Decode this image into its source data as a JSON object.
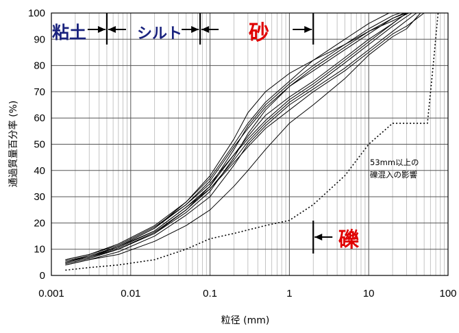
{
  "chart_data": {
    "type": "line",
    "xlabel": "粒径 (mm)",
    "ylabel": "通過質量百分率 (%)",
    "x_scale": "log",
    "xlim": [
      0.001,
      100
    ],
    "ylim": [
      0,
      100
    ],
    "x_ticks": [
      0.001,
      0.01,
      0.1,
      1,
      10,
      100
    ],
    "x_tick_labels": [
      "0.001",
      "0.01",
      "0.1",
      "1",
      "10",
      "100"
    ],
    "y_ticks": [
      0,
      10,
      20,
      30,
      40,
      50,
      60,
      70,
      80,
      90,
      100
    ],
    "grid": true,
    "zones": {
      "clay": {
        "label": "粘土",
        "color": "#1a237e",
        "boundary_max": 0.005
      },
      "silt": {
        "label": "シルト",
        "color": "#1a237e",
        "boundary_min": 0.005,
        "boundary_max": 0.075
      },
      "sand": {
        "label": "砂",
        "color": "#e00000",
        "boundary_min": 0.075,
        "boundary_max": 2
      },
      "gravel": {
        "label": "礫",
        "color": "#e00000",
        "boundary_min": 2
      }
    },
    "annotation": {
      "line1": "53mm以上の",
      "line2": "礫混入の影響"
    },
    "series": [
      {
        "style": "solid",
        "points": [
          [
            0.0015,
            5.5
          ],
          [
            0.003,
            7.5
          ],
          [
            0.007,
            11
          ],
          [
            0.02,
            18
          ],
          [
            0.05,
            27
          ],
          [
            0.1,
            36
          ],
          [
            0.2,
            49
          ],
          [
            0.3,
            56
          ],
          [
            0.5,
            64
          ],
          [
            1,
            72
          ],
          [
            2,
            79
          ],
          [
            5,
            87
          ],
          [
            10,
            93
          ],
          [
            20,
            98
          ],
          [
            30,
            100
          ]
        ]
      },
      {
        "style": "solid",
        "points": [
          [
            0.0015,
            5
          ],
          [
            0.003,
            7
          ],
          [
            0.007,
            10.5
          ],
          [
            0.02,
            17
          ],
          [
            0.05,
            26
          ],
          [
            0.1,
            34
          ],
          [
            0.2,
            46
          ],
          [
            0.3,
            53
          ],
          [
            0.5,
            61
          ],
          [
            1,
            68
          ],
          [
            2,
            74
          ],
          [
            5,
            83
          ],
          [
            10,
            90
          ],
          [
            20,
            96
          ],
          [
            30,
            100
          ]
        ]
      },
      {
        "style": "solid",
        "points": [
          [
            0.0015,
            4.5
          ],
          [
            0.003,
            6.5
          ],
          [
            0.007,
            10
          ],
          [
            0.02,
            16.5
          ],
          [
            0.05,
            25
          ],
          [
            0.1,
            33
          ],
          [
            0.2,
            44
          ],
          [
            0.3,
            51
          ],
          [
            0.5,
            58
          ],
          [
            1,
            66
          ],
          [
            2,
            72
          ],
          [
            5,
            81
          ],
          [
            10,
            88
          ],
          [
            20,
            95
          ],
          [
            35,
            100
          ]
        ]
      },
      {
        "style": "solid",
        "points": [
          [
            0.0015,
            6
          ],
          [
            0.003,
            8
          ],
          [
            0.007,
            12
          ],
          [
            0.02,
            19
          ],
          [
            0.05,
            28
          ],
          [
            0.1,
            37
          ],
          [
            0.2,
            50
          ],
          [
            0.3,
            58
          ],
          [
            0.5,
            66
          ],
          [
            1,
            74
          ],
          [
            2,
            82
          ],
          [
            5,
            90
          ],
          [
            10,
            96
          ],
          [
            18,
            100
          ]
        ]
      },
      {
        "style": "solid",
        "points": [
          [
            0.0015,
            5
          ],
          [
            0.003,
            7
          ],
          [
            0.007,
            10
          ],
          [
            0.02,
            16
          ],
          [
            0.05,
            24
          ],
          [
            0.1,
            32
          ],
          [
            0.2,
            45
          ],
          [
            0.3,
            54
          ],
          [
            0.5,
            63
          ],
          [
            1,
            72
          ],
          [
            2,
            78
          ],
          [
            5,
            86
          ],
          [
            10,
            92
          ],
          [
            20,
            98
          ],
          [
            28,
            100
          ]
        ]
      },
      {
        "style": "solid",
        "points": [
          [
            0.0015,
            4
          ],
          [
            0.003,
            6
          ],
          [
            0.007,
            9
          ],
          [
            0.02,
            15
          ],
          [
            0.05,
            23
          ],
          [
            0.1,
            30
          ],
          [
            0.2,
            42
          ],
          [
            0.3,
            50
          ],
          [
            0.5,
            57
          ],
          [
            1,
            65
          ],
          [
            2,
            71
          ],
          [
            5,
            79
          ],
          [
            10,
            86
          ],
          [
            20,
            93
          ],
          [
            40,
            100
          ]
        ]
      },
      {
        "style": "solid",
        "points": [
          [
            0.0015,
            4
          ],
          [
            0.003,
            6
          ],
          [
            0.007,
            8
          ],
          [
            0.02,
            13
          ],
          [
            0.05,
            19
          ],
          [
            0.1,
            25
          ],
          [
            0.2,
            34
          ],
          [
            0.3,
            40
          ],
          [
            0.5,
            48
          ],
          [
            1,
            58
          ],
          [
            2,
            65
          ],
          [
            5,
            75
          ],
          [
            10,
            84
          ],
          [
            20,
            91
          ],
          [
            30,
            94
          ],
          [
            45,
            100
          ]
        ]
      },
      {
        "style": "solid",
        "points": [
          [
            0.0015,
            5
          ],
          [
            0.003,
            7
          ],
          [
            0.007,
            11
          ],
          [
            0.02,
            18
          ],
          [
            0.05,
            28
          ],
          [
            0.1,
            38
          ],
          [
            0.2,
            52
          ],
          [
            0.3,
            62
          ],
          [
            0.5,
            70
          ],
          [
            1,
            77
          ],
          [
            2,
            82
          ],
          [
            5,
            88
          ],
          [
            10,
            93
          ],
          [
            20,
            97
          ],
          [
            32,
            100
          ]
        ]
      },
      {
        "style": "solid",
        "points": [
          [
            0.0015,
            6
          ],
          [
            0.003,
            8
          ],
          [
            0.007,
            11.5
          ],
          [
            0.02,
            18.5
          ],
          [
            0.05,
            27
          ],
          [
            0.1,
            35
          ],
          [
            0.2,
            46
          ],
          [
            0.3,
            52
          ],
          [
            0.5,
            59
          ],
          [
            1,
            67
          ],
          [
            2,
            73
          ],
          [
            5,
            82
          ],
          [
            10,
            89
          ],
          [
            20,
            96
          ],
          [
            30,
            100
          ]
        ]
      },
      {
        "style": "solid",
        "points": [
          [
            0.0015,
            5
          ],
          [
            0.003,
            7.5
          ],
          [
            0.007,
            11
          ],
          [
            0.02,
            17
          ],
          [
            0.05,
            26
          ],
          [
            0.1,
            33
          ],
          [
            0.2,
            43
          ],
          [
            0.3,
            49
          ],
          [
            0.5,
            56
          ],
          [
            1,
            63
          ],
          [
            2,
            70
          ],
          [
            5,
            78
          ],
          [
            10,
            85
          ],
          [
            20,
            92
          ],
          [
            30,
            95
          ],
          [
            50,
            100
          ]
        ]
      },
      {
        "style": "solid",
        "points": [
          [
            0.0015,
            4.5
          ],
          [
            0.003,
            6.5
          ],
          [
            0.007,
            10
          ],
          [
            0.02,
            16
          ],
          [
            0.05,
            25
          ],
          [
            0.1,
            34
          ],
          [
            0.2,
            48
          ],
          [
            0.3,
            57
          ],
          [
            0.5,
            65
          ],
          [
            1,
            73
          ],
          [
            2,
            80
          ],
          [
            5,
            88
          ],
          [
            10,
            94
          ],
          [
            20,
            99
          ],
          [
            25,
            100
          ]
        ]
      },
      {
        "style": "dotted",
        "points": [
          [
            0.0015,
            2
          ],
          [
            0.003,
            3
          ],
          [
            0.007,
            4
          ],
          [
            0.02,
            6
          ],
          [
            0.05,
            10
          ],
          [
            0.1,
            14
          ],
          [
            0.2,
            16
          ],
          [
            0.5,
            19
          ],
          [
            1,
            21
          ],
          [
            2,
            27
          ],
          [
            5,
            38
          ],
          [
            10,
            50
          ],
          [
            20,
            58
          ],
          [
            30,
            58
          ],
          [
            55,
            58
          ],
          [
            65,
            80
          ],
          [
            75,
            100
          ]
        ]
      }
    ]
  }
}
